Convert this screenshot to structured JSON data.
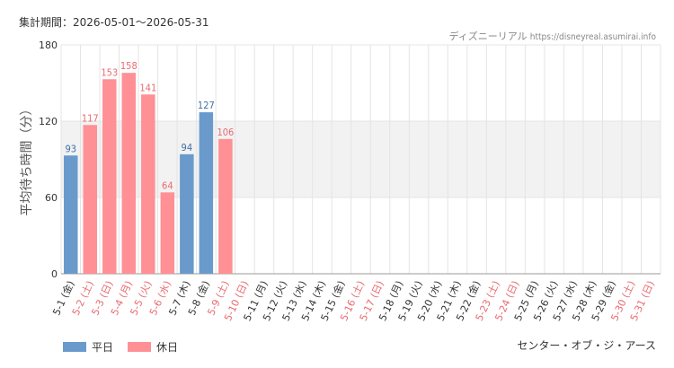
{
  "header": {
    "period": "集計期間：2026-05-01～2026-05-31",
    "credit_name": "ディズニーリアル",
    "credit_url": "https://disneyreal.asumirai.info"
  },
  "facility": "センター・オブ・ジ・アース",
  "legend": {
    "weekday_label": "平日",
    "holiday_label": "休日"
  },
  "colors": {
    "weekday": "#6a9acb",
    "holiday": "#ff9095",
    "weekday_text": "#3f6fa6",
    "holiday_text": "#e86a70",
    "band": "#f2f2f2",
    "grid": "#e4e4e4"
  },
  "chart_data": {
    "type": "bar",
    "ylabel": "平均待ち時間（分）",
    "ylim": [
      0,
      180
    ],
    "yticks": [
      0,
      60,
      120,
      180
    ],
    "shaded_band": [
      60,
      120
    ],
    "categories": [
      "5-1 (金)",
      "5-2 (土)",
      "5-3 (日)",
      "5-4 (月)",
      "5-5 (火)",
      "5-6 (水)",
      "5-7 (木)",
      "5-8 (金)",
      "5-9 (土)",
      "5-10 (日)",
      "5-11 (月)",
      "5-12 (火)",
      "5-13 (水)",
      "5-14 (木)",
      "5-15 (金)",
      "5-16 (土)",
      "5-17 (日)",
      "5-18 (月)",
      "5-19 (火)",
      "5-20 (水)",
      "5-21 (木)",
      "5-22 (金)",
      "5-23 (土)",
      "5-24 (日)",
      "5-25 (月)",
      "5-26 (火)",
      "5-27 (水)",
      "5-28 (木)",
      "5-29 (金)",
      "5-30 (土)",
      "5-31 (日)"
    ],
    "day_type": [
      "weekday",
      "holiday",
      "holiday",
      "holiday",
      "holiday",
      "holiday",
      "weekday",
      "weekday",
      "holiday",
      "holiday",
      "weekday",
      "weekday",
      "weekday",
      "weekday",
      "weekday",
      "holiday",
      "holiday",
      "weekday",
      "weekday",
      "weekday",
      "weekday",
      "weekday",
      "holiday",
      "holiday",
      "weekday",
      "weekday",
      "weekday",
      "weekday",
      "weekday",
      "holiday",
      "holiday"
    ],
    "values": [
      93,
      117,
      153,
      158,
      141,
      64,
      94,
      127,
      106,
      null,
      null,
      null,
      null,
      null,
      null,
      null,
      null,
      null,
      null,
      null,
      null,
      null,
      null,
      null,
      null,
      null,
      null,
      null,
      null,
      null,
      null
    ]
  }
}
